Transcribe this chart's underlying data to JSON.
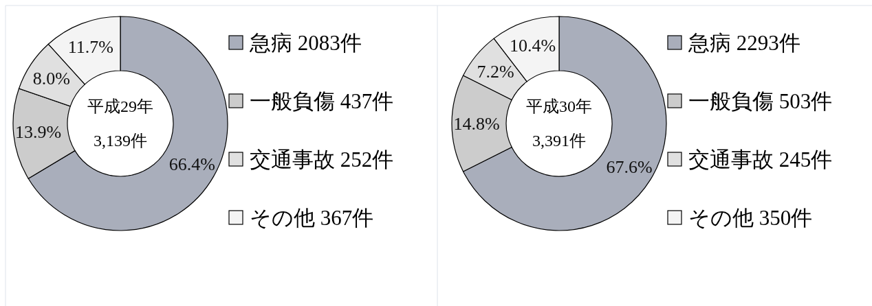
{
  "chart_data": [
    {
      "type": "donut",
      "categories": [
        "急病 2083件",
        "一般負傷 437件",
        "交通事故 252件",
        "その他 367件"
      ],
      "values": [
        66.4,
        13.9,
        8.0,
        11.7
      ],
      "value_labels": [
        "66.4%",
        "13.9%",
        "8.0%",
        "11.7%"
      ],
      "colors": [
        "#a9aebb",
        "#cccccc",
        "#e0e0e0",
        "#f4f4f4"
      ],
      "legend": "right",
      "annotations": [
        "平成29年",
        "3,139件"
      ]
    },
    {
      "type": "donut",
      "categories": [
        "急病 2293件",
        "一般負傷 503件",
        "交通事故 245件",
        "その他 350件"
      ],
      "values": [
        67.6,
        14.8,
        7.2,
        10.4
      ],
      "value_labels": [
        "67.6%",
        "14.8%",
        "7.2%",
        "10.4%"
      ],
      "colors": [
        "#a9aebb",
        "#cccccc",
        "#e0e0e0",
        "#f4f4f4"
      ],
      "legend": "right",
      "annotations": [
        "平成30年",
        "3,391件"
      ]
    }
  ]
}
